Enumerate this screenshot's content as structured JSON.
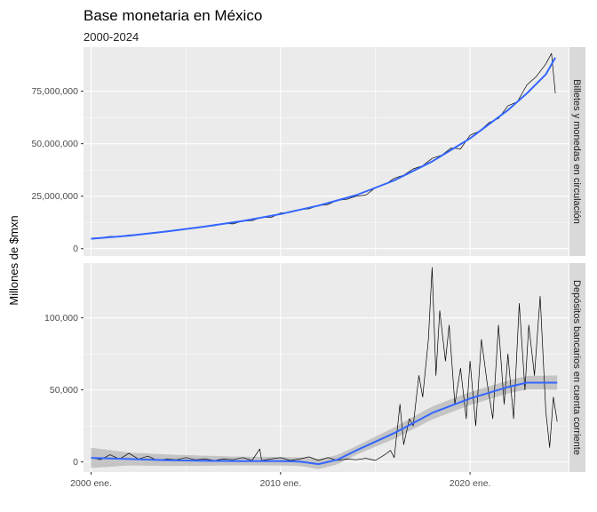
{
  "chart_data": {
    "type": "line",
    "title": "Base monetaria en México",
    "subtitle": "2000-2024",
    "ylabel": "Millones de $mxn",
    "xlabel": "",
    "x_range": [
      1999.6,
      2025.2
    ],
    "x_ticks": [
      {
        "value": 2000,
        "label": "2000 ene."
      },
      {
        "value": 2010,
        "label": "2010 ene."
      },
      {
        "value": 2020,
        "label": "2020 ene."
      }
    ],
    "grid": true,
    "legend": "none",
    "colors": {
      "raw": "#000000",
      "smooth": "#3366FF",
      "band": "#BDBDBD",
      "panel": "#EBEBEB",
      "strip": "#D9D9D9"
    },
    "panels": [
      {
        "strip": "Billetes y monedas en circulación",
        "ylim": [
          -3500000,
          96000000
        ],
        "y_ticks": [
          {
            "value": 0,
            "label": "0"
          },
          {
            "value": 25000000,
            "label": "25,000,000"
          },
          {
            "value": 50000000,
            "label": "50,000,000"
          },
          {
            "value": 75000000,
            "label": "75,000,000"
          }
        ],
        "series_raw": {
          "x": [
            2000.0,
            2000.5,
            2001.0,
            2001.5,
            2002.0,
            2002.5,
            2003.0,
            2003.5,
            2004.0,
            2004.5,
            2005.0,
            2005.5,
            2006.0,
            2006.5,
            2007.0,
            2007.5,
            2008.0,
            2008.5,
            2009.0,
            2009.5,
            2010.0,
            2010.5,
            2011.0,
            2011.5,
            2012.0,
            2012.5,
            2013.0,
            2013.5,
            2014.0,
            2014.5,
            2015.0,
            2015.5,
            2016.0,
            2016.5,
            2017.0,
            2017.5,
            2018.0,
            2018.5,
            2019.0,
            2019.5,
            2020.0,
            2020.5,
            2021.0,
            2021.5,
            2022.0,
            2022.5,
            2023.0,
            2023.5,
            2024.0,
            2024.3,
            2024.5
          ],
          "y": [
            5000000,
            5200000,
            5800000,
            5900000,
            6500000,
            6700000,
            7400000,
            7600000,
            8400000,
            8600000,
            9400000,
            9700000,
            10500000,
            10900000,
            12000000,
            11800000,
            13200000,
            13300000,
            15000000,
            14800000,
            17000000,
            17200000,
            18500000,
            19000000,
            20500000,
            21000000,
            23000000,
            23500000,
            25000000,
            25500000,
            29000000,
            30500000,
            33500000,
            35000000,
            38000000,
            39500000,
            43000000,
            44500000,
            48000000,
            47500000,
            54000000,
            56000000,
            60000000,
            62000000,
            68000000,
            70000000,
            78000000,
            82000000,
            88000000,
            93000000,
            74000000
          ]
        },
        "series_smooth": {
          "x": [
            2000,
            2002,
            2004,
            2006,
            2008,
            2010,
            2012,
            2014,
            2016,
            2018,
            2020,
            2022,
            2023,
            2024,
            2024.5
          ],
          "y": [
            4700000,
            6200000,
            8200000,
            10500000,
            13200000,
            16500000,
            20500000,
            25500000,
            32500000,
            41500000,
            52500000,
            66000000,
            74000000,
            83000000,
            91000000
          ]
        }
      },
      {
        "strip": "Depósitos bancarios en cuenta corriente",
        "ylim": [
          -7000,
          138000
        ],
        "y_ticks": [
          {
            "value": 0,
            "label": "0"
          },
          {
            "value": 50000,
            "label": "50,000"
          },
          {
            "value": 100000,
            "label": "100,000"
          }
        ],
        "series_raw": {
          "x": [
            2000.0,
            2000.5,
            2001.0,
            2001.5,
            2002.0,
            2002.5,
            2003.0,
            2003.5,
            2004.0,
            2004.5,
            2005.0,
            2005.5,
            2006.0,
            2006.5,
            2007.0,
            2007.5,
            2008.0,
            2008.5,
            2008.9,
            2009.0,
            2009.5,
            2010.0,
            2010.5,
            2011.0,
            2011.5,
            2012.0,
            2012.5,
            2013.0,
            2013.5,
            2014.0,
            2014.5,
            2015.0,
            2015.5,
            2015.8,
            2016.0,
            2016.3,
            2016.5,
            2016.8,
            2017.0,
            2017.3,
            2017.5,
            2017.8,
            2018.0,
            2018.2,
            2018.4,
            2018.7,
            2018.9,
            2019.2,
            2019.5,
            2019.8,
            2020.0,
            2020.3,
            2020.6,
            2020.9,
            2021.2,
            2021.5,
            2021.8,
            2022.0,
            2022.3,
            2022.6,
            2022.9,
            2023.1,
            2023.4,
            2023.7,
            2024.0,
            2024.2,
            2024.4,
            2024.6
          ],
          "y": [
            3000,
            1500,
            5000,
            2000,
            6000,
            2000,
            4000,
            1000,
            2000,
            1500,
            3000,
            1500,
            2000,
            1000,
            2000,
            1500,
            3000,
            1000,
            9000,
            1000,
            2000,
            3000,
            1000,
            2000,
            3500,
            1000,
            3000,
            1000,
            2000,
            1500,
            2500,
            1000,
            5000,
            8000,
            3000,
            40000,
            12000,
            30000,
            25000,
            60000,
            45000,
            85000,
            135000,
            60000,
            105000,
            70000,
            95000,
            40000,
            65000,
            30000,
            70000,
            25000,
            85000,
            55000,
            30000,
            95000,
            40000,
            75000,
            30000,
            110000,
            50000,
            95000,
            60000,
            115000,
            35000,
            10000,
            45000,
            28000
          ]
        },
        "series_smooth": {
          "x": [
            2000,
            2002,
            2004,
            2006,
            2008,
            2010,
            2011,
            2012,
            2013,
            2014,
            2016,
            2018,
            2020,
            2022,
            2023,
            2024.6
          ],
          "y": [
            2800,
            2000,
            1200,
            800,
            600,
            500,
            200,
            -1500,
            1500,
            8000,
            20000,
            34000,
            44000,
            52000,
            55000,
            55000
          ]
        },
        "band_halfwidth": {
          "x": [
            2000,
            2002,
            2008,
            2011,
            2012,
            2014,
            2016,
            2018,
            2020,
            2022,
            2024.6
          ],
          "y": [
            7000,
            4500,
            3000,
            3000,
            3500,
            3000,
            4000,
            4500,
            4500,
            4500,
            5000
          ]
        }
      }
    ]
  }
}
